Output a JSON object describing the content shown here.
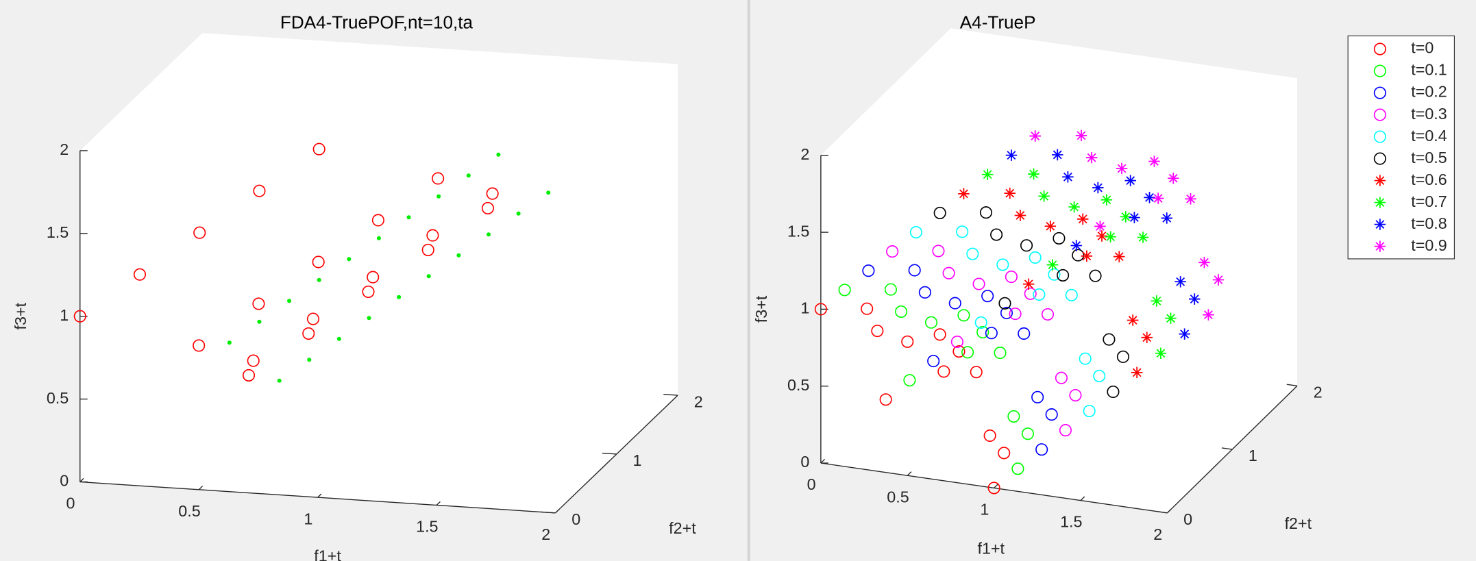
{
  "chart_data": [
    {
      "type": "scatter3d",
      "title": "FDA4-TruePOF,nt=10,ta",
      "xlabel": "f1+t",
      "ylabel": "f2+t",
      "zlabel": "f3+t",
      "xlim": [
        0,
        2
      ],
      "ylim": [
        0,
        2
      ],
      "zlim": [
        0,
        2
      ],
      "xticks": [
        0,
        0.5,
        1,
        1.5,
        2
      ],
      "yticks": [
        0,
        1,
        2
      ],
      "zticks": [
        0,
        0.5,
        1,
        1.5,
        2
      ],
      "series": [
        {
          "color": "#ff0000",
          "marker": "o",
          "x": [
            0,
            0.71,
            0.58,
            0.5,
            0.2,
            0.91,
            0.78,
            0.7,
            0.4,
            1.11,
            0.98,
            0.9,
            0.6,
            1.31,
            1.18,
            1.1,
            0.8,
            1.51,
            1.38,
            1.3
          ],
          "y": [
            0,
            0,
            0.58,
            0,
            0.2,
            0.2,
            0.78,
            0.2,
            0.4,
            0.4,
            0.98,
            0.4,
            0.6,
            0.6,
            1.18,
            0.6,
            0.8,
            0.8,
            1.38,
            0.8
          ],
          "z": [
            1,
            0.71,
            0.58,
            0.87,
            1.2,
            0.91,
            0.78,
            1.07,
            1.4,
            1.11,
            0.98,
            1.27,
            1.6,
            1.31,
            1.18,
            1.47,
            1.8,
            1.51,
            1.38,
            1.67
          ]
        },
        {
          "color": "#00ee00",
          "marker": ".",
          "x": [
            0.5,
            0.71,
            0.6,
            0.81,
            0.7,
            0.91,
            0.8,
            1.01,
            0.9,
            1.11,
            1,
            1.21,
            1.1,
            1.31,
            1.2,
            1.41,
            1.3,
            1.51,
            1.4,
            1.61
          ],
          "y": [
            0.5,
            0.5,
            0.6,
            0.6,
            0.7,
            0.7,
            0.8,
            0.8,
            0.9,
            0.9,
            1,
            1,
            1.1,
            1.1,
            1.2,
            1.2,
            1.3,
            1.3,
            1.4,
            1.4
          ],
          "z": [
            0.71,
            0.5,
            0.81,
            0.6,
            0.91,
            0.7,
            1.01,
            0.8,
            1.11,
            0.9,
            1.21,
            1,
            1.31,
            1.1,
            1.41,
            1.2,
            1.51,
            1.3,
            1.61,
            1.4
          ]
        }
      ]
    },
    {
      "type": "scatter3d",
      "title": "A4-TrueP",
      "xlabel": "f1+t",
      "ylabel": "f2+t",
      "zlabel": "f3+t",
      "xlim": [
        0,
        2
      ],
      "ylim": [
        0,
        2
      ],
      "zlim": [
        0,
        2
      ],
      "xticks": [
        0,
        0.5,
        1,
        1.5,
        2
      ],
      "yticks": [
        0,
        1,
        2
      ],
      "zticks": [
        0,
        0.5,
        1,
        1.5,
        2
      ],
      "legend": "right",
      "series": [
        {
          "name": "t=0",
          "color": "#ff0000",
          "marker": "o",
          "x": [
            1,
            0,
            0,
            0.71,
            0.71,
            0,
            0.58,
            0.87,
            0.5,
            0,
            0.5,
            0.71
          ],
          "y": [
            0,
            1,
            0,
            0.71,
            0,
            0.71,
            0.58,
            0.5,
            0,
            0.87,
            0.5,
            0.5
          ],
          "z": [
            0,
            0,
            1,
            0,
            0.71,
            0.71,
            0.58,
            0,
            0.87,
            0.5,
            0.71,
            0.5
          ]
        },
        {
          "name": "t=0.1",
          "color": "#00ff00",
          "marker": "o",
          "x": [
            1.1,
            0.1,
            0.1,
            0.81,
            0.81,
            0.1,
            0.68,
            0.97,
            0.6,
            0.1,
            0.6,
            0.81
          ],
          "y": [
            0.1,
            1.1,
            0.1,
            0.81,
            0.1,
            0.81,
            0.68,
            0.6,
            0.1,
            0.97,
            0.6,
            0.6
          ],
          "z": [
            0.1,
            0.1,
            1.1,
            0.1,
            0.81,
            0.81,
            0.68,
            0.1,
            0.97,
            0.6,
            0.81,
            0.6
          ]
        },
        {
          "name": "t=0.2",
          "color": "#0000ff",
          "marker": "o",
          "x": [
            1.2,
            0.2,
            0.2,
            0.91,
            0.91,
            0.2,
            0.78,
            1.07,
            0.7,
            0.2,
            0.7,
            0.91
          ],
          "y": [
            0.2,
            1.2,
            0.2,
            0.91,
            0.2,
            0.91,
            0.78,
            0.7,
            0.2,
            1.07,
            0.7,
            0.7
          ],
          "z": [
            0.2,
            0.2,
            1.2,
            0.2,
            0.91,
            0.91,
            0.78,
            0.2,
            1.07,
            0.7,
            0.91,
            0.7
          ]
        },
        {
          "name": "t=0.3",
          "color": "#ff00ff",
          "marker": "o",
          "x": [
            1.3,
            0.3,
            0.3,
            1.01,
            1.01,
            0.3,
            0.88,
            1.17,
            0.8,
            0.3,
            0.8,
            1.01
          ],
          "y": [
            0.3,
            1.3,
            0.3,
            1.01,
            0.3,
            1.01,
            0.88,
            0.8,
            0.3,
            1.17,
            0.8,
            0.8
          ],
          "z": [
            0.3,
            0.3,
            1.3,
            0.3,
            1.01,
            1.01,
            0.88,
            0.3,
            1.17,
            0.8,
            1.01,
            0.8
          ]
        },
        {
          "name": "t=0.4",
          "color": "#00ffff",
          "marker": "o",
          "x": [
            1.4,
            0.4,
            0.4,
            1.11,
            1.11,
            0.4,
            0.98,
            1.27,
            0.9,
            0.4,
            0.9,
            1.11
          ],
          "y": [
            0.4,
            1.4,
            0.4,
            1.11,
            0.4,
            1.11,
            0.98,
            0.9,
            0.4,
            1.27,
            0.9,
            0.9
          ],
          "z": [
            0.4,
            0.4,
            1.4,
            0.4,
            1.11,
            1.11,
            0.98,
            0.4,
            1.27,
            0.9,
            1.11,
            0.9
          ]
        },
        {
          "name": "t=0.5",
          "color": "#000000",
          "marker": "o",
          "x": [
            1.5,
            0.5,
            0.5,
            1.21,
            1.21,
            0.5,
            1.08,
            1.37,
            1,
            0.5,
            1,
            1.21
          ],
          "y": [
            0.5,
            1.5,
            0.5,
            1.21,
            0.5,
            1.21,
            1.08,
            1,
            0.5,
            1.37,
            1,
            1
          ],
          "z": [
            0.5,
            0.5,
            1.5,
            0.5,
            1.21,
            1.21,
            1.08,
            0.5,
            1.37,
            1,
            1.21,
            1
          ]
        },
        {
          "name": "t=0.6",
          "color": "#ff0000",
          "marker": "*",
          "x": [
            1.6,
            0.6,
            0.6,
            1.31,
            1.31,
            0.6,
            1.18,
            1.47,
            1.1,
            0.6,
            1.1,
            1.31
          ],
          "y": [
            0.6,
            1.6,
            0.6,
            1.31,
            0.6,
            1.31,
            1.18,
            1.1,
            0.6,
            1.47,
            1.1,
            1.1
          ],
          "z": [
            0.6,
            0.6,
            1.6,
            0.6,
            1.31,
            1.31,
            1.18,
            0.6,
            1.47,
            1.1,
            1.31,
            1.1
          ]
        },
        {
          "name": "t=0.7",
          "color": "#00ff00",
          "marker": "*",
          "x": [
            1.7,
            0.7,
            0.7,
            1.41,
            1.41,
            0.7,
            1.28,
            1.57,
            1.2,
            0.7,
            1.2,
            1.41
          ],
          "y": [
            0.7,
            1.7,
            0.7,
            1.41,
            0.7,
            1.41,
            1.28,
            1.2,
            0.7,
            1.57,
            1.2,
            1.2
          ],
          "z": [
            0.7,
            0.7,
            1.7,
            0.7,
            1.41,
            1.41,
            1.28,
            0.7,
            1.57,
            1.2,
            1.41,
            1.2
          ]
        },
        {
          "name": "t=0.8",
          "color": "#0000ff",
          "marker": "*",
          "x": [
            1.8,
            0.8,
            0.8,
            1.51,
            1.51,
            0.8,
            1.38,
            1.67,
            1.3,
            0.8,
            1.3,
            1.51
          ],
          "y": [
            0.8,
            1.8,
            0.8,
            1.51,
            0.8,
            1.51,
            1.38,
            1.3,
            0.8,
            1.67,
            1.3,
            1.3
          ],
          "z": [
            0.8,
            0.8,
            1.8,
            0.8,
            1.51,
            1.51,
            1.38,
            0.8,
            1.67,
            1.3,
            1.51,
            1.3
          ]
        },
        {
          "name": "t=0.9",
          "color": "#ff00ff",
          "marker": "*",
          "x": [
            1.9,
            0.9,
            0.9,
            1.61,
            1.61,
            0.9,
            1.48,
            1.77,
            1.4,
            0.9,
            1.4,
            1.61
          ],
          "y": [
            0.9,
            1.9,
            0.9,
            1.61,
            0.9,
            1.61,
            1.48,
            1.4,
            0.9,
            1.77,
            1.4,
            1.4
          ],
          "z": [
            0.9,
            0.9,
            1.9,
            0.9,
            1.61,
            1.61,
            1.48,
            0.9,
            1.77,
            1.4,
            1.61,
            1.4
          ]
        }
      ]
    }
  ]
}
